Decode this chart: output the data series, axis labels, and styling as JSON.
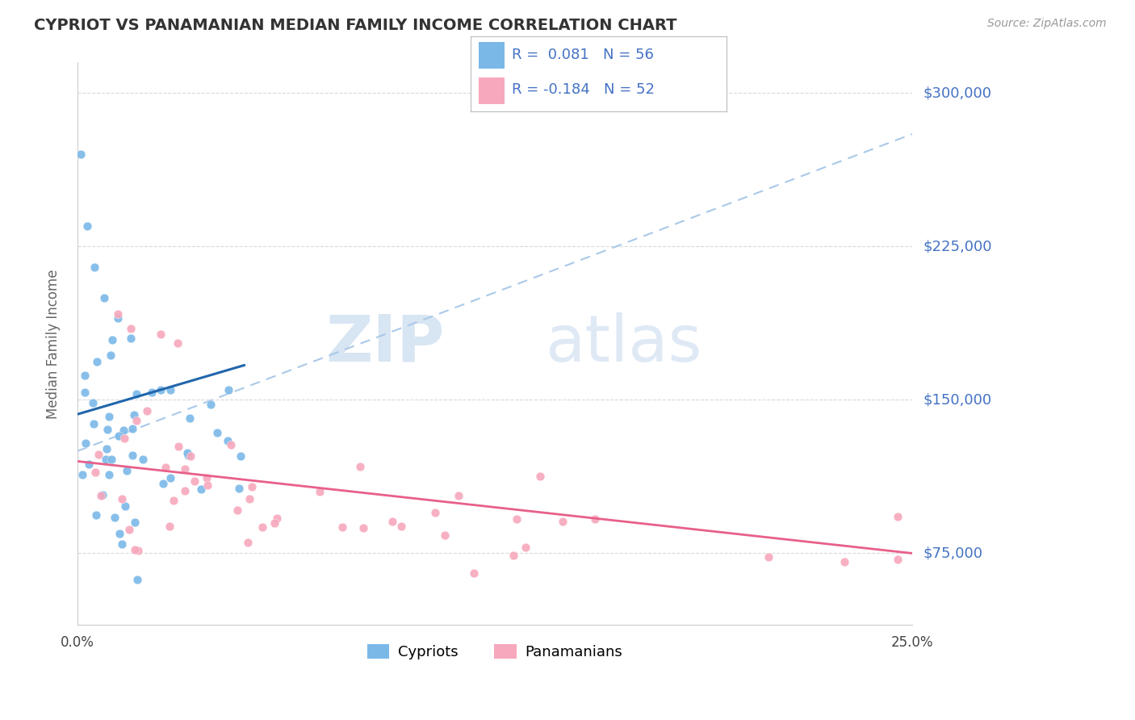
{
  "title": "CYPRIOT VS PANAMANIAN MEDIAN FAMILY INCOME CORRELATION CHART",
  "source": "Source: ZipAtlas.com",
  "ylabel": "Median Family Income",
  "xlim": [
    0.0,
    0.25
  ],
  "ylim": [
    40000,
    315000
  ],
  "yticks": [
    75000,
    150000,
    225000,
    300000
  ],
  "ytick_labels": [
    "$75,000",
    "$150,000",
    "$225,000",
    "$300,000"
  ],
  "xticks": [
    0.0,
    0.25
  ],
  "xtick_labels": [
    "0.0%",
    "25.0%"
  ],
  "cypriot_color": "#7ab8e8",
  "panamanian_color": "#f7a8bc",
  "cypriot_line_color": "#2166ac",
  "panamanian_line_color": "#e8608a",
  "dashed_line_color": "#aac9e8",
  "legend_R1": "R =  0.081",
  "legend_N1": "N = 56",
  "legend_R2": "R = -0.184",
  "legend_N2": "N = 52",
  "legend_label1": "Cypriots",
  "legend_label2": "Panamanians",
  "background_color": "#ffffff",
  "grid_color": "#d0d0d0",
  "axis_color": "#4472c4",
  "title_color": "#333333",
  "source_color": "#999999",
  "ylabel_color": "#666666",
  "watermark_color": "#d0e4f5",
  "watermark_alpha": 0.6
}
